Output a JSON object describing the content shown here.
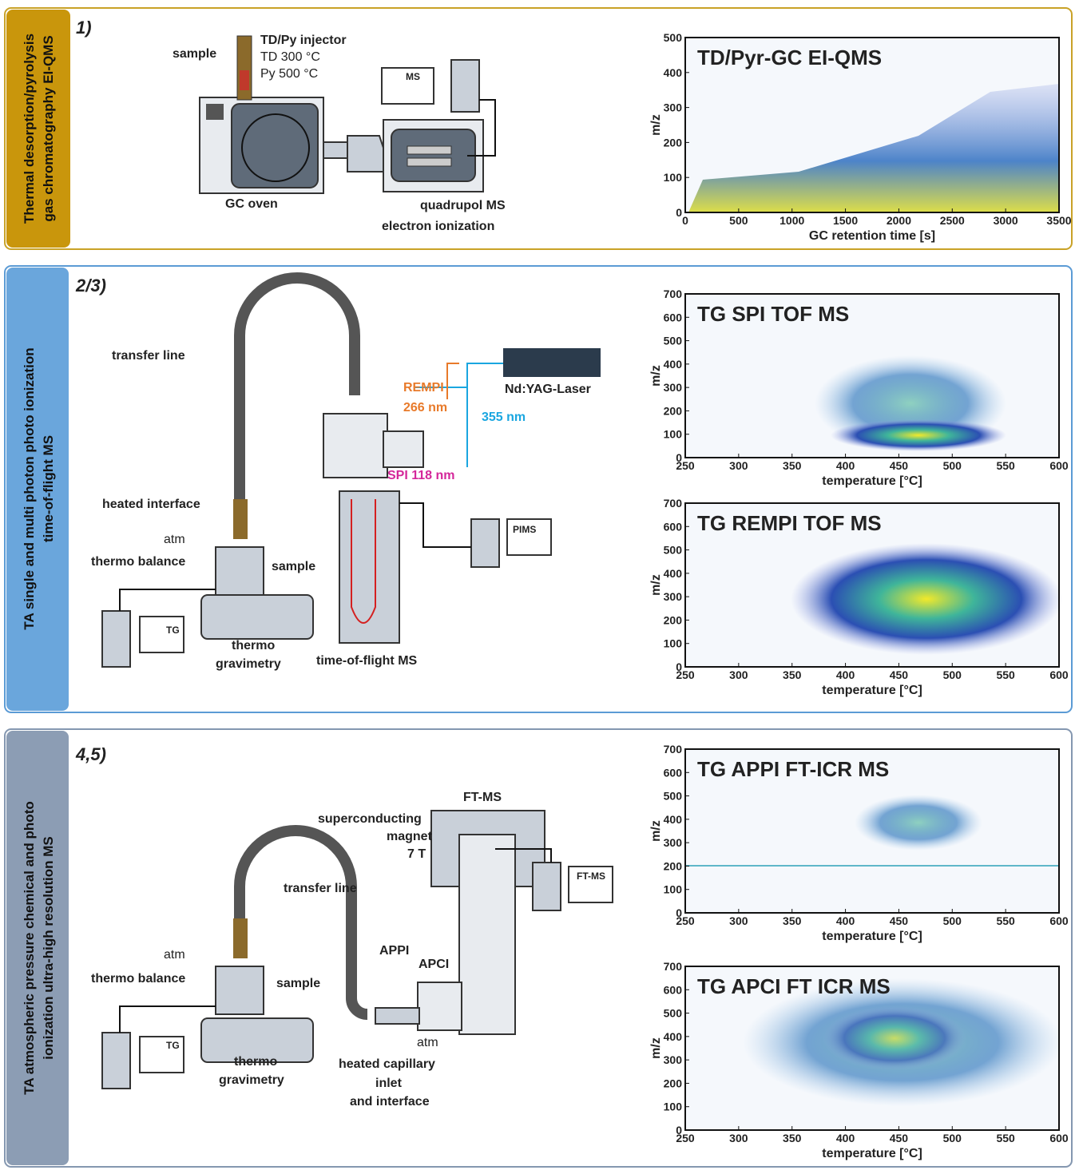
{
  "panels": [
    {
      "side_label": [
        "Thermal desorption/pyrolysis",
        "gas chromatography EI-QMS"
      ],
      "number": "1)",
      "labels": [
        "TD/Py injector",
        "TD 300 °C",
        "Py 500 °C",
        "sample",
        "MS",
        "GC oven",
        "quadrupol MS",
        "electron ionization"
      ],
      "plots": [
        {
          "title": "TD/Pyr-GC EI-QMS",
          "xlabel": "GC retention time [s]",
          "ylabel": "m/z",
          "xlim": [
            0,
            3500
          ],
          "xticks": [
            0,
            500,
            1000,
            1500,
            2000,
            2500,
            3000,
            3500
          ],
          "ylim": [
            0,
            500
          ],
          "yticks": [
            0,
            100,
            200,
            300,
            400,
            500
          ]
        }
      ]
    },
    {
      "side_label": [
        "TA single and multi photon photo ionization",
        "time-of-flight MS"
      ],
      "number": "2/3)",
      "labels": [
        "transfer line",
        "REMPI",
        "266 nm",
        "Nd:YAG-Laser",
        "355 nm",
        "SPI 118 nm",
        "heated interface",
        "atm",
        "thermo balance",
        "sample",
        "PIMS",
        "TG",
        "thermo",
        "gravimetry",
        "time-of-flight MS"
      ],
      "plots": [
        {
          "title": "TG SPI TOF MS",
          "xlabel": "temperature [°C]",
          "ylabel": "m/z",
          "xlim": [
            250,
            600
          ],
          "xticks": [
            250,
            300,
            350,
            400,
            450,
            500,
            550,
            600
          ],
          "ylim": [
            0,
            700
          ],
          "yticks": [
            0,
            100,
            200,
            300,
            400,
            500,
            600,
            700
          ]
        },
        {
          "title": "TG REMPI TOF MS",
          "xlabel": "temperature [°C]",
          "ylabel": "m/z",
          "xlim": [
            250,
            600
          ],
          "xticks": [
            250,
            300,
            350,
            400,
            450,
            500,
            550,
            600
          ],
          "ylim": [
            0,
            700
          ],
          "yticks": [
            0,
            100,
            200,
            300,
            400,
            500,
            600,
            700
          ]
        }
      ]
    },
    {
      "side_label": [
        "TA atmospheric pressure chemical and photo",
        "ionization ultra-high resolution MS"
      ],
      "number": "4,5)",
      "labels": [
        "FT-MS",
        "superconducting",
        "magnet",
        "7 T",
        "FT-MS",
        "transfer line",
        "atm",
        "thermo balance",
        "sample",
        "APPI",
        "APCI",
        "atm",
        "TG",
        "thermo",
        "gravimetry",
        "heated capillary",
        "inlet",
        "and interface"
      ],
      "plots": [
        {
          "title": "TG APPI FT-ICR MS",
          "xlabel": "temperature [°C]",
          "ylabel": "m/z",
          "xlim": [
            250,
            600
          ],
          "xticks": [
            250,
            300,
            350,
            400,
            450,
            500,
            550,
            600
          ],
          "ylim": [
            0,
            700
          ],
          "yticks": [
            0,
            100,
            200,
            300,
            400,
            500,
            600,
            700
          ]
        },
        {
          "title": "TG APCI FT ICR MS",
          "xlabel": "temperature [°C]",
          "ylabel": "m/z",
          "xlim": [
            250,
            600
          ],
          "xticks": [
            250,
            300,
            350,
            400,
            450,
            500,
            550,
            600
          ],
          "ylim": [
            0,
            700
          ],
          "yticks": [
            0,
            100,
            200,
            300,
            400,
            500,
            600,
            700
          ]
        }
      ]
    }
  ]
}
